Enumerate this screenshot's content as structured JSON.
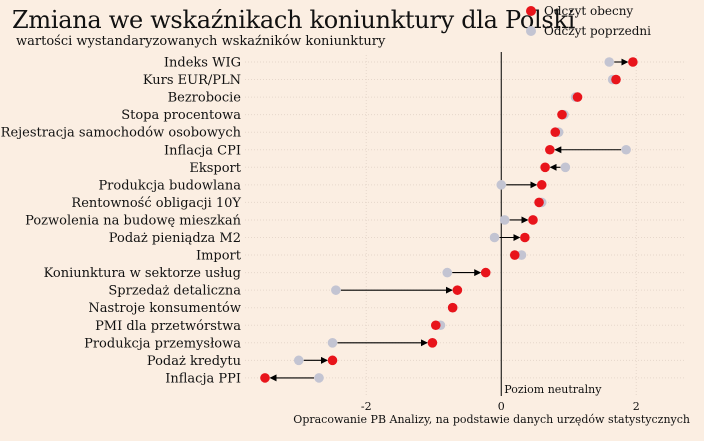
{
  "title": "Zmiana we wskaźnikach koniunktury dla Polski",
  "subtitle": "wartości wystandaryzowanych wskaźników koniunktury",
  "source": "Opracowanie PB Analizy, na podstawie danych urzędów statystycznych",
  "neutral_label": "Poziom neutralny",
  "colors": {
    "background": "#fbeee2",
    "current": "#e8141b",
    "previous": "#c3c4d2",
    "arrow": "#000000",
    "grid": "#e6d7cb"
  },
  "chart_data": {
    "type": "dot-arrow",
    "xlim": [
      -3.5,
      2.5
    ],
    "x_ticks": [
      -2,
      0,
      2
    ],
    "x_tick_labels": [
      "-2",
      "0",
      "2"
    ],
    "grid": true,
    "legend_position": "top-right",
    "reference_line": 0,
    "categories": [
      "Indeks WIG",
      "Kurs EUR/PLN",
      "Bezrobocie",
      "Stopa procentowa",
      "Rejestracja samochodów osobowych",
      "Inflacja CPI",
      "Eksport",
      "Produkcja budowlana",
      "Rentowność obligacji 10Y",
      "Pozwolenia na budowę mieszkań",
      "Podaż pieniądza M2",
      "Import",
      "Koniunktura w sektorze usług",
      "Sprzedaż detaliczna",
      "Nastroje konsumentów",
      "PMI dla przetwórstwa",
      "Produkcja przemysłowa",
      "Podaż kredytu",
      "Inflacja PPI"
    ],
    "series": [
      {
        "name": "Odczyt obecny",
        "values": [
          1.95,
          1.7,
          1.13,
          0.9,
          0.8,
          0.72,
          0.65,
          0.6,
          0.56,
          0.47,
          0.35,
          0.2,
          -0.23,
          -0.65,
          -0.72,
          -0.97,
          -1.02,
          -2.5,
          -3.5
        ]
      },
      {
        "name": "Odczyt poprzedni",
        "values": [
          1.6,
          1.65,
          1.1,
          0.93,
          0.85,
          1.85,
          0.95,
          0.0,
          0.6,
          0.05,
          -0.1,
          0.3,
          -0.8,
          -2.45,
          -0.72,
          -0.9,
          -2.5,
          -3.0,
          -2.7
        ]
      }
    ]
  }
}
